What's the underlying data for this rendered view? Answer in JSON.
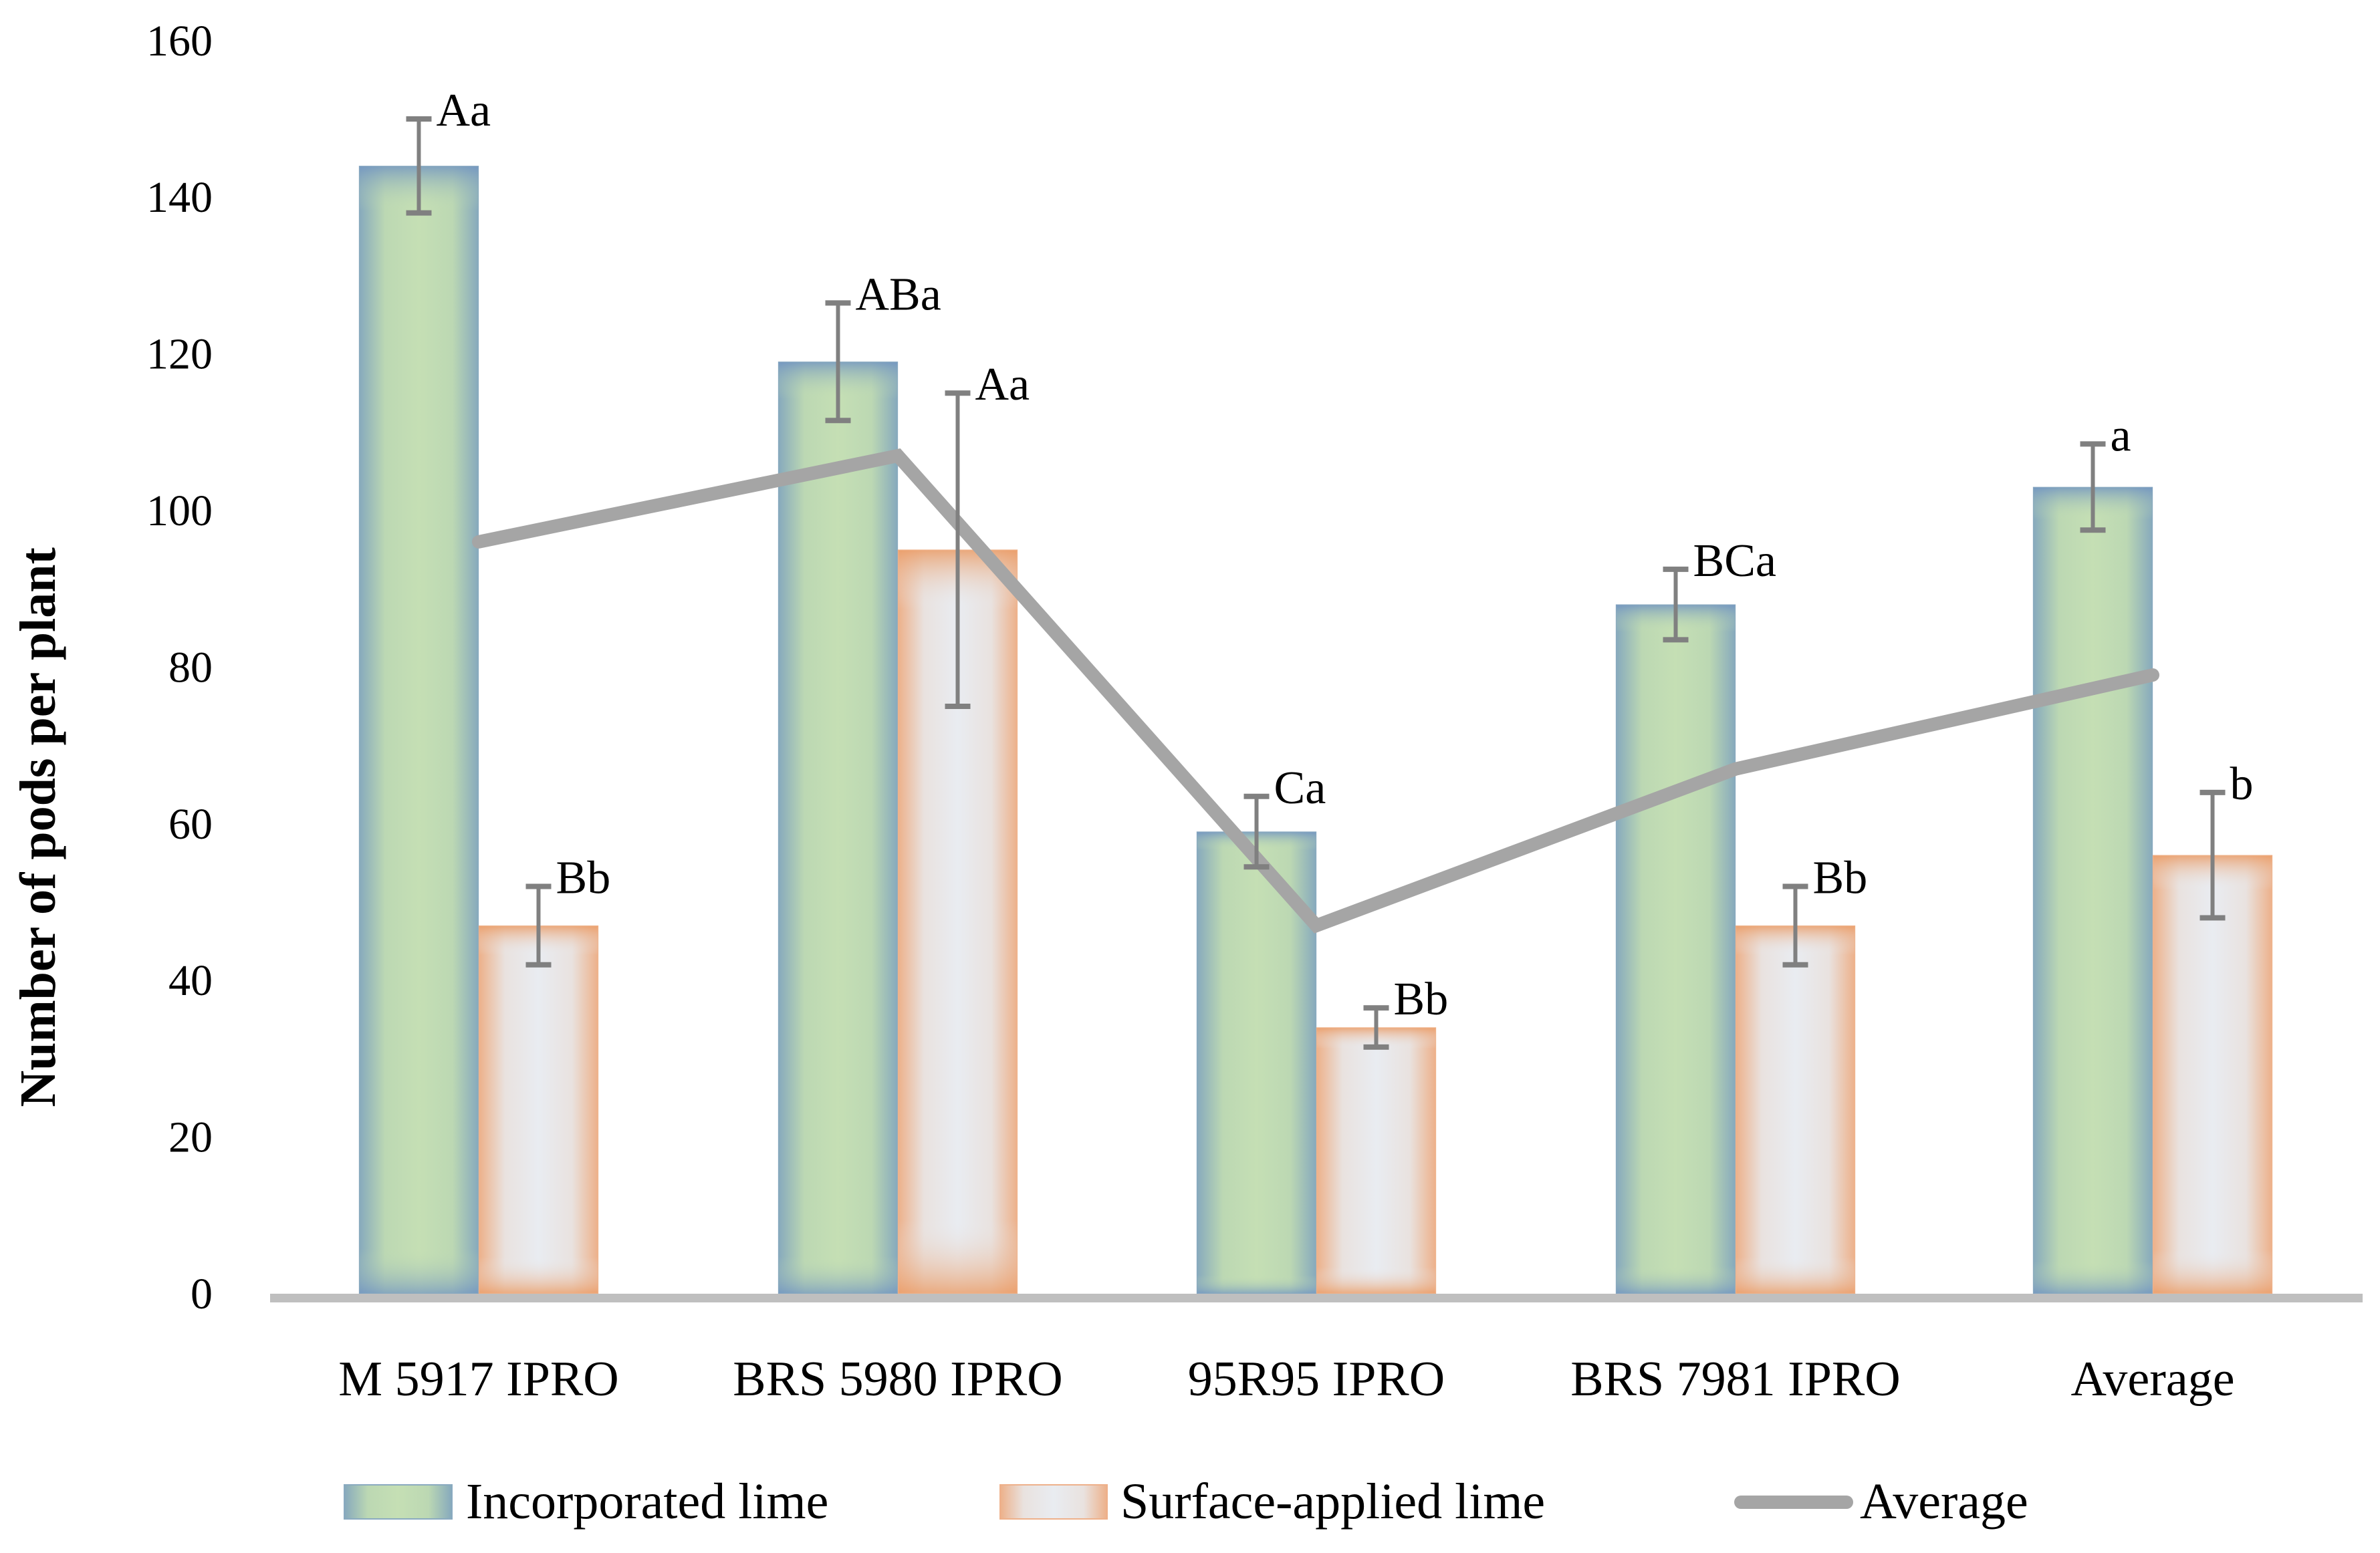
{
  "chart_data": {
    "type": "bar",
    "title": "",
    "xlabel": "",
    "ylabel": "Number of pods per plant",
    "ylim": [
      0,
      160
    ],
    "yticks": [
      0,
      20,
      40,
      60,
      80,
      100,
      120,
      140,
      160
    ],
    "grid": false,
    "legend_position": "bottom",
    "categories": [
      "M 5917 IPRO",
      "BRS 5980 IPRO",
      "95R95 IPRO",
      "BRS 7981 IPRO",
      "Average"
    ],
    "series": [
      {
        "name": "Incorporated lime",
        "kind": "bar",
        "color_center": "#c5dfb4",
        "color_edge": "#7f9fbf",
        "values": [
          144,
          119,
          59,
          88,
          103
        ],
        "errors": [
          6,
          7.5,
          4.5,
          4.5,
          5.5
        ],
        "labels": [
          "Aa",
          "ABa",
          "Ca",
          "BCa",
          "a"
        ]
      },
      {
        "name": "Surface-applied lime",
        "kind": "bar",
        "color_center": "#e9ecf1",
        "color_edge": "#eda06c",
        "values": [
          47,
          95,
          34,
          47,
          56
        ],
        "errors": [
          5,
          20,
          2.5,
          5,
          8
        ],
        "labels": [
          "Bb",
          "Aa",
          "Bb",
          "Bb",
          "b"
        ]
      },
      {
        "name": "Average",
        "kind": "line",
        "color": "#a5a5a5",
        "values": [
          96,
          107,
          47,
          67,
          79
        ]
      }
    ]
  },
  "legend": [
    {
      "label": "Incorporated lime",
      "type": "swatch-green"
    },
    {
      "label": "Surface-applied lime",
      "type": "swatch-orange"
    },
    {
      "label": "Average",
      "type": "line"
    }
  ],
  "colors": {
    "axis": "#bfbfbf",
    "error_bar": "#808080",
    "line": "#a5a5a5",
    "text": "#000000"
  }
}
